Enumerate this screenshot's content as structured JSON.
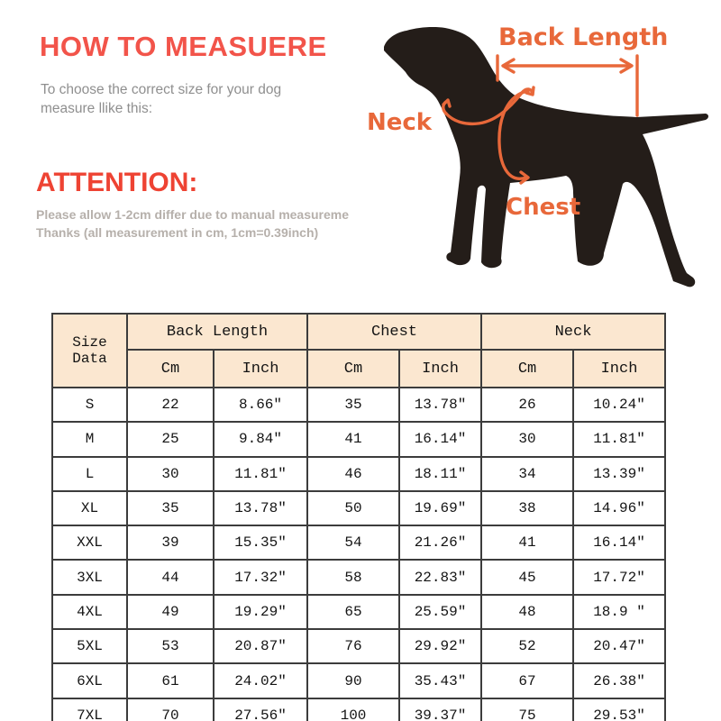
{
  "howto": {
    "title": "HOW TO MEASUERE",
    "subtitle_line1": "To choose the correct size for your dog",
    "subtitle_line2": "measure llike this:"
  },
  "attention": {
    "title": "ATTENTION:",
    "line1": "Please allow 1-2cm differ due to manual measureme",
    "line2": "Thanks (all measurement in cm, 1cm=0.39inch)"
  },
  "diagram": {
    "labels": {
      "back_length": "Back Length",
      "neck": "Neck",
      "chest": "Chest"
    },
    "colors": {
      "annotation": "#e8683a",
      "dog": "#241d19",
      "heading_red": "#f2544a"
    }
  },
  "size_table": {
    "corner_label": "Size Data",
    "column_groups": [
      {
        "label": "Back Length",
        "sub": [
          "Cm",
          "Inch"
        ]
      },
      {
        "label": "Chest",
        "sub": [
          "Cm",
          "Inch"
        ]
      },
      {
        "label": "Neck",
        "sub": [
          "Cm",
          "Inch"
        ]
      }
    ],
    "rows": [
      {
        "size": "S",
        "cells": [
          "22",
          "8.66″",
          "35",
          "13.78″",
          "26",
          "10.24″"
        ]
      },
      {
        "size": "M",
        "cells": [
          "25",
          "9.84″",
          "41",
          "16.14″",
          "30",
          "11.81″"
        ]
      },
      {
        "size": "L",
        "cells": [
          "30",
          "11.81″",
          "46",
          "18.11″",
          "34",
          "13.39″"
        ]
      },
      {
        "size": "XL",
        "cells": [
          "35",
          "13.78″",
          "50",
          "19.69″",
          "38",
          "14.96″"
        ]
      },
      {
        "size": "XXL",
        "cells": [
          "39",
          "15.35″",
          "54",
          "21.26″",
          "41",
          "16.14″"
        ]
      },
      {
        "size": "3XL",
        "cells": [
          "44",
          "17.32″",
          "58",
          "22.83″",
          "45",
          "17.72″"
        ]
      },
      {
        "size": "4XL",
        "cells": [
          "49",
          "19.29″",
          "65",
          "25.59″",
          "48",
          "18.9 ″"
        ]
      },
      {
        "size": "5XL",
        "cells": [
          "53",
          "20.87″",
          "76",
          "29.92″",
          "52",
          "20.47″"
        ]
      },
      {
        "size": "6XL",
        "cells": [
          "61",
          "24.02″",
          "90",
          "35.43″",
          "67",
          "26.38″"
        ]
      },
      {
        "size": "7XL",
        "cells": [
          "70",
          "27.56″",
          "100",
          "39.37″",
          "75",
          "29.53″"
        ]
      }
    ]
  }
}
